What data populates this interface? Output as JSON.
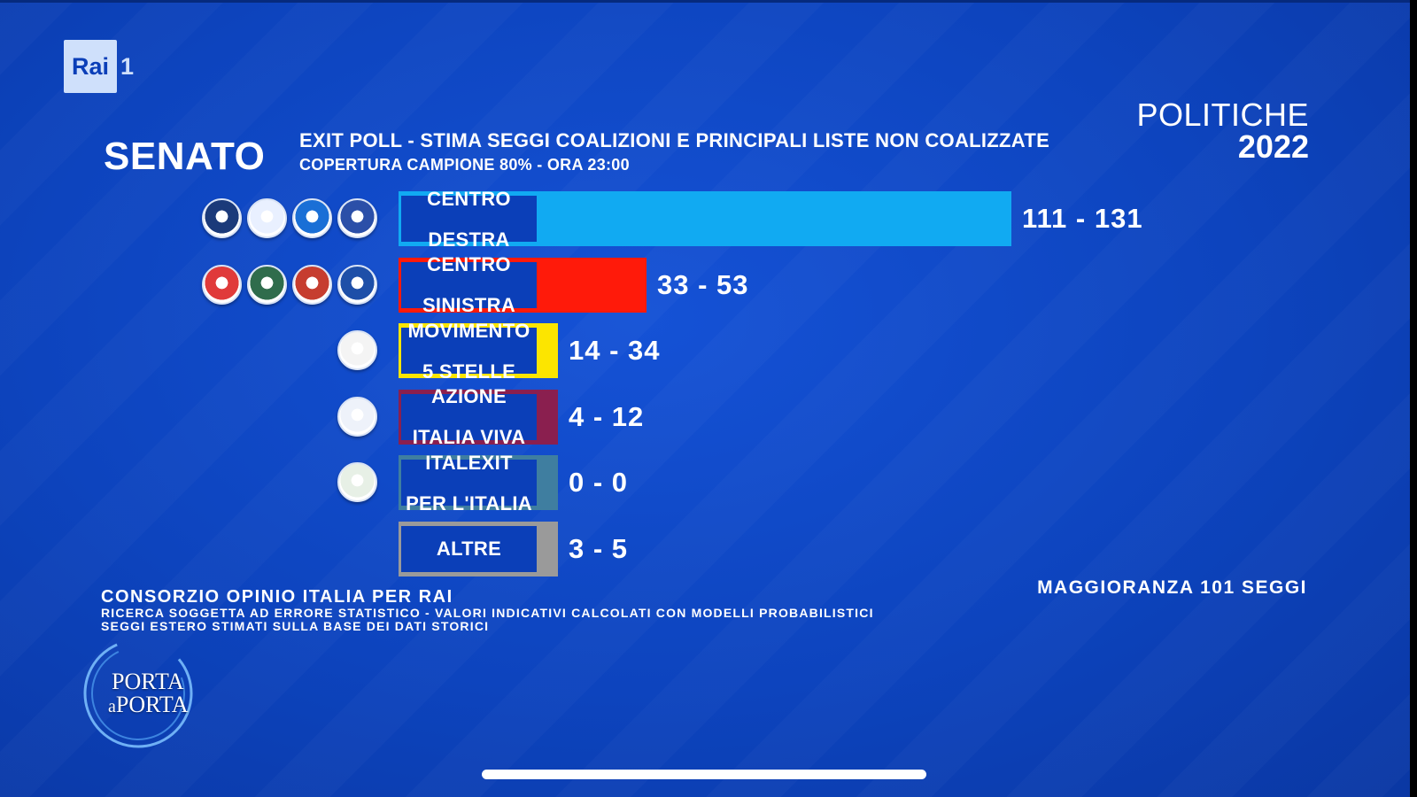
{
  "header": {
    "channel_brand": "Rai",
    "channel_number": "1",
    "chamber": "SENATO",
    "headline": "EXIT POLL - STIMA SEGGI COALIZIONI E PRINCIPALI LISTE NON COALIZZATE",
    "subheadline": "COPERTURA CAMPIONE 80% - ORA 23:00",
    "event": "POLITICHE",
    "year": "2022"
  },
  "chart_data": {
    "type": "bar",
    "orientation": "horizontal",
    "categories": [
      "CENTRO DESTRA",
      "CENTRO SINISTRA",
      "MOVIMENTO 5 STELLE",
      "AZIONE ITALIA VIVA",
      "ITALEXIT PER L'ITALIA",
      "ALTRE"
    ],
    "range_labels": [
      "111 - 131",
      "33 - 53",
      "14 - 34",
      "4 - 12",
      "0 - 0",
      "3 - 5"
    ],
    "values_min": [
      111,
      33,
      14,
      4,
      0,
      3
    ],
    "values_max": [
      131,
      53,
      34,
      12,
      0,
      5
    ],
    "colors": [
      "#11aaf2",
      "#ff1a0a",
      "#fce500",
      "#8a1f4f",
      "#3f7ea0",
      "#9a9a9a"
    ],
    "label_lines": [
      [
        "CENTRO",
        "DESTRA"
      ],
      [
        "CENTRO",
        "SINISTRA"
      ],
      [
        "MOVIMENTO",
        "5 STELLE"
      ],
      [
        "AZIONE",
        "ITALIA VIVA"
      ],
      [
        "ITALEXIT",
        "PER L'ITALIA"
      ],
      [
        "ALTRE"
      ]
    ],
    "logo_counts": [
      4,
      4,
      1,
      1,
      1,
      0
    ],
    "xlim": [
      0,
      131
    ]
  },
  "footer": {
    "majority": "MAGGIORANZA 101 SEGGI",
    "source": "CONSORZIO OPINIO ITALIA PER RAI",
    "note_1": "RICERCA SOGGETTA AD ERRORE STATISTICO - VALORI INDICATIVI CALCOLATI CON MODELLI PROBABILISTICI",
    "note_2": "SEGGI ESTERO STIMATI SULLA BASE DEI DATI STORICI"
  },
  "program_logo": {
    "line_1": "PORTA",
    "line_2": "a",
    "line_3": "PORTA"
  },
  "icons": {
    "party_logo": "party-symbol-icon",
    "home_indicator": "home-indicator"
  }
}
